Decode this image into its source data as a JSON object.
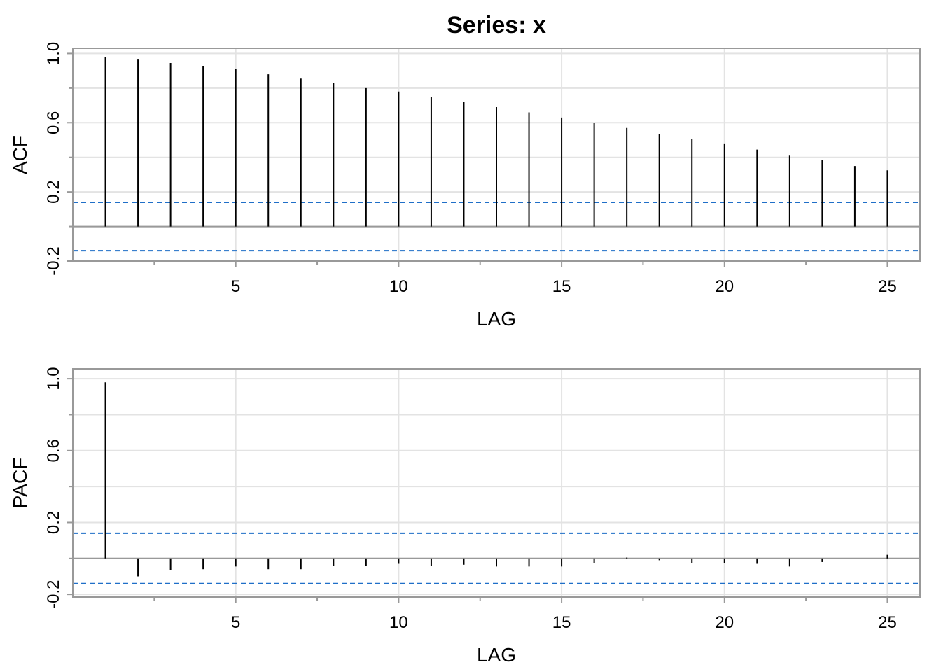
{
  "chart_data": [
    {
      "type": "stem",
      "title": "Series:  x",
      "xlabel": "LAG",
      "ylabel": "ACF",
      "x": [
        1,
        2,
        3,
        4,
        5,
        6,
        7,
        8,
        9,
        10,
        11,
        12,
        13,
        14,
        15,
        16,
        17,
        18,
        19,
        20,
        21,
        22,
        23,
        24,
        25
      ],
      "series": [
        {
          "color": "#000000",
          "values": [
            0.98,
            0.965,
            0.945,
            0.925,
            0.91,
            0.88,
            0.855,
            0.83,
            0.8,
            0.78,
            0.75,
            0.72,
            0.69,
            0.66,
            0.63,
            0.6,
            0.57,
            0.535,
            0.505,
            0.48,
            0.445,
            0.41,
            0.385,
            0.35,
            0.325
          ]
        }
      ],
      "xlim": [
        0,
        26
      ],
      "xticks": [
        5,
        10,
        15,
        20,
        25
      ],
      "xticks_minor": [
        2.5,
        7.5,
        12.5,
        17.5,
        22.5
      ],
      "ylim": [
        -0.2,
        1.03
      ],
      "yticks": [
        -0.2,
        0.2,
        0.6,
        {
          "value": 1,
          "label": "1.0"
        }
      ],
      "yticks_minor": [
        0,
        0.4,
        0.8
      ],
      "hlines": [
        0.14,
        -0.14
      ],
      "hline_color": "#1f6fc8",
      "grid": true
    },
    {
      "type": "stem",
      "xlabel": "LAG",
      "ylabel": "PACF",
      "x": [
        1,
        2,
        3,
        4,
        5,
        6,
        7,
        8,
        9,
        10,
        11,
        12,
        13,
        14,
        15,
        16,
        17,
        18,
        19,
        20,
        21,
        22,
        23,
        24,
        25
      ],
      "series": [
        {
          "color": "#000000",
          "values": [
            0.98,
            -0.1,
            -0.065,
            -0.06,
            -0.045,
            -0.06,
            -0.06,
            -0.04,
            -0.04,
            -0.03,
            -0.04,
            -0.035,
            -0.045,
            -0.045,
            -0.045,
            -0.025,
            0.005,
            -0.01,
            -0.025,
            -0.025,
            -0.03,
            -0.045,
            -0.02,
            0,
            0.02
          ]
        }
      ],
      "xlim": [
        0,
        26
      ],
      "xticks": [
        5,
        10,
        15,
        20,
        25
      ],
      "xticks_minor": [
        2.5,
        7.5,
        12.5,
        17.5,
        22.5
      ],
      "ylim": [
        -0.215,
        1.055
      ],
      "yticks": [
        -0.2,
        0.2,
        0.6,
        {
          "value": 1,
          "label": "1.0"
        }
      ],
      "yticks_minor": [
        0,
        0.4,
        0.8
      ],
      "hlines": [
        0.14,
        -0.14
      ],
      "hline_color": "#1f6fc8",
      "grid": true
    }
  ]
}
